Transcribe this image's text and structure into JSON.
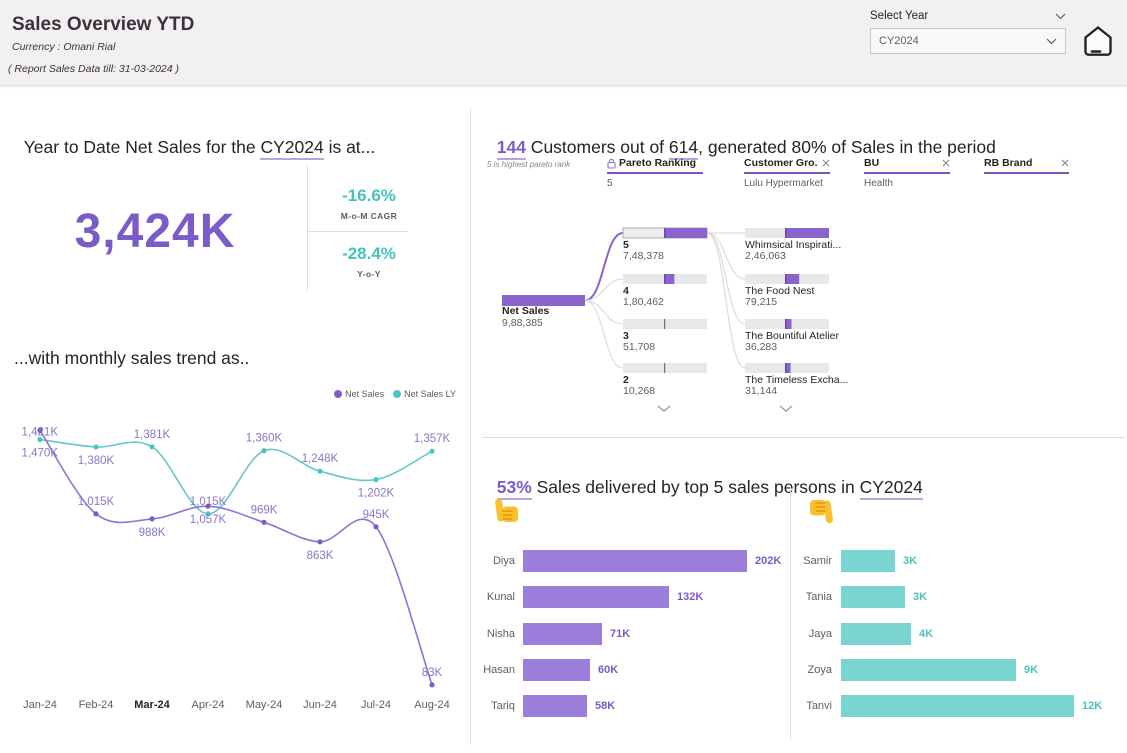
{
  "colors": {
    "accent_purple": "#7a5bc7",
    "purple_bar": "#9c7dd9",
    "tree_bar_purple": "#8a63cc",
    "teal": "#45c2be",
    "teal_bar": "#7ad5d1",
    "underline_lavender": "#b7a4e3",
    "chip_underline": "#7b52c2",
    "data_label": "#8678c8",
    "text_dark": "#252423",
    "text_gray": "#605e5c"
  },
  "icons": {
    "home": "home-icon",
    "lock": "lock-icon",
    "close": "close-icon",
    "chevron_down": "chevron-down-icon",
    "thumbs_up": "thumbs-up-icon",
    "thumbs_down": "thumbs-down-icon",
    "legend_dot": "legend-dot"
  },
  "header": {
    "title": "Sales Overview YTD",
    "currency_note": "Currency : Omani Rial",
    "report_note": "( Report Sales Data till: 31-03-2024 )",
    "year_slicer": {
      "label": "Select Year",
      "value": "CY2024"
    }
  },
  "ytd": {
    "title": {
      "pre": "Year to Date Net Sales for the ",
      "year": "CY2024",
      "post": " is at..."
    },
    "net_sales_value": "3,424K",
    "kpis": [
      {
        "value": "-16.6%",
        "label": "M-o-M CAGR"
      },
      {
        "value": "-28.4%",
        "label": "Y-o-Y"
      }
    ]
  },
  "trend": {
    "title": "...with monthly sales trend as.."
  },
  "pareto": {
    "title": {
      "count": "144",
      "mid1": " Customers out of ",
      "total": "614",
      "mid2": ", generated 80% of Sales in the period"
    },
    "note": "5 is highest pareto rank",
    "filters": [
      {
        "label": "Pareto Ranking",
        "value": "5",
        "locked": true
      },
      {
        "label": "Customer Gro...",
        "value": "Lulu Hypermarket",
        "closable": true
      },
      {
        "label": "BU",
        "value": "Health",
        "closable": true
      },
      {
        "label": "RB Brand",
        "value": "",
        "closable": true
      }
    ]
  },
  "sales_persons": {
    "title": {
      "pct": "53%",
      "mid": " Sales delivered by top 5 sales persons in ",
      "year": "CY2024"
    }
  },
  "chart_data": [
    {
      "id": "monthly_trend",
      "type": "line",
      "title": "...with monthly sales trend as..",
      "x": [
        "Jan-24",
        "Feb-24",
        "Mar-24",
        "Apr-24",
        "May-24",
        "Jun-24",
        "Jul-24",
        "Aug-24"
      ],
      "bold_x_label": "Mar-24",
      "ylim_k": [
        0,
        1500
      ],
      "grid": false,
      "legend_position": "top-right",
      "data_label_color": "#8678c8",
      "series": [
        {
          "name": "Net Sales",
          "color": "#7e5bc8",
          "line_color": "#9272d4",
          "values_k": [
            1470,
            1015,
            988,
            1057,
            969,
            863,
            945,
            83
          ],
          "labels": [
            "1,470K",
            "1,015K",
            "988K",
            "1,057K",
            "969K",
            "863K",
            "945K",
            "83K"
          ],
          "label_side": [
            "left-below",
            "above",
            "below",
            "below",
            "above",
            "below",
            "above",
            "above"
          ]
        },
        {
          "name": "Net Sales LY",
          "color": "#4ec5c1",
          "line_color": "#5fcac6",
          "values_k": [
            1421,
            1380,
            1381,
            1015,
            1360,
            1248,
            1202,
            1357
          ],
          "labels": [
            "1,421K",
            "1,380K",
            "1,381K",
            "1,015K",
            "1,360K",
            "1,248K",
            "1,202K",
            "1,357K"
          ],
          "label_side": [
            "left-above",
            "below",
            "above",
            "above",
            "above",
            "above",
            "below",
            "above"
          ]
        }
      ]
    },
    {
      "id": "top5_sales_persons",
      "type": "bar",
      "orientation": "horizontal",
      "group": "thumbs-up (top performers)",
      "categories": [
        "Diya",
        "Kunal",
        "Nisha",
        "Hasan",
        "Tariq"
      ],
      "values_k": [
        202,
        132,
        71,
        60,
        58
      ],
      "labels": [
        "202K",
        "132K",
        "71K",
        "60K",
        "58K"
      ],
      "bar_color": "#9c7dd9",
      "value_label_color": "#7c5ac6",
      "xlim_k": [
        0,
        235
      ]
    },
    {
      "id": "bottom5_sales_persons",
      "type": "bar",
      "orientation": "horizontal",
      "group": "thumbs-down (bottom performers)",
      "categories": [
        "Samir",
        "Tania",
        "Jaya",
        "Zoya",
        "Tanvi"
      ],
      "values_k": [
        2.8,
        3.3,
        3.6,
        9,
        12
      ],
      "labels": [
        "3K",
        "3K",
        "4K",
        "9K",
        "12K"
      ],
      "bar_color": "#7ad5d1",
      "value_label_color": "#4bbfbb",
      "xlim_k": [
        0,
        14
      ]
    },
    {
      "id": "pareto_tree",
      "type": "decomposition_tree",
      "bar_color": "#8a63cc",
      "root": {
        "label": "Net Sales",
        "value_label": "9,88,385",
        "value": 988385
      },
      "levels": [
        {
          "field": "Pareto Ranking",
          "nodes": [
            {
              "label": "5",
              "value_label": "7,48,378",
              "value": 748378,
              "selected": true
            },
            {
              "label": "4",
              "value_label": "1,80,462",
              "value": 180462
            },
            {
              "label": "3",
              "value_label": "51,708",
              "value": 51708
            },
            {
              "label": "2",
              "value_label": "10,268",
              "value": 10268
            }
          ]
        },
        {
          "field": "Customer",
          "nodes": [
            {
              "label": "Whimsical Inspirati...",
              "value_label": "2,46,063",
              "value": 246063
            },
            {
              "label": "The Food Nest",
              "value_label": "79,215",
              "value": 79215
            },
            {
              "label": "The Bountiful Atelier",
              "value_label": "36,283",
              "value": 36283
            },
            {
              "label": "The Timeless Excha...",
              "value_label": "31,144",
              "value": 31144
            }
          ]
        }
      ]
    }
  ]
}
